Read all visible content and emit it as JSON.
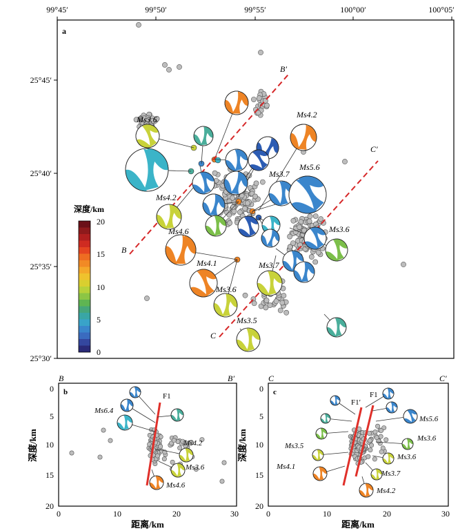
{
  "map": {
    "label": "a",
    "lon_ticks": [
      "99°45′",
      "99°50′",
      "99°55′",
      "100°00′",
      "100°05′"
    ],
    "lat_ticks": [
      "25°45′",
      "25°40′",
      "25°35′",
      "25°30′"
    ],
    "profile_b": {
      "start": "B",
      "end": "B′"
    },
    "profile_c": {
      "start": "C",
      "end": "C′"
    },
    "magnitude_labels": [
      "Ms3.6",
      "Ms4.2",
      "Ms3.7",
      "Ms5.6",
      "Ms4.2",
      "Ms4.6",
      "Ms3.6",
      "Ms4.1",
      "Ms3.7",
      "Ms3.6",
      "Ms3.5"
    ]
  },
  "colorbar": {
    "title": "深度/km",
    "ticks": [
      "20",
      "15",
      "10",
      "5",
      "0"
    ],
    "range": [
      0,
      20
    ]
  },
  "section_b": {
    "label": "b",
    "left": "B",
    "right": "B′",
    "fault": "F1",
    "xlabel": "距离/km",
    "ylabel": "深度/km",
    "xticks": [
      "0",
      "10",
      "20",
      "30"
    ],
    "yticks": [
      "0",
      "5",
      "10",
      "15",
      "20"
    ],
    "mech_labels": [
      "Ms6.4",
      "Ms4.2",
      "Ms3.6",
      "Ms4.6"
    ]
  },
  "section_c": {
    "label": "c",
    "left": "C",
    "right": "C′",
    "fault_a": "F1′",
    "fault_b": "F1",
    "xlabel": "距离/km",
    "ylabel": "深度/km",
    "xticks": [
      "0",
      "10",
      "20",
      "30"
    ],
    "yticks": [
      "0",
      "5",
      "10",
      "15",
      "20"
    ],
    "mech_labels": [
      "Ms5.6",
      "Ms3.6",
      "Ms3.5",
      "Ms3.6",
      "Ms4.1",
      "Ms3.7",
      "Ms4.2"
    ]
  },
  "colors": {
    "quake_fill": "#bdbdbd",
    "profile_line": "#d62728",
    "fault_line": "#e0302a",
    "deep_blue": "#2c5cb3",
    "blue": "#3b86cc",
    "cyan": "#3bb4c8",
    "teal": "#4aae9b",
    "green": "#7cbf4a",
    "yellow_green": "#c8d23a",
    "orange": "#ee8425"
  }
}
